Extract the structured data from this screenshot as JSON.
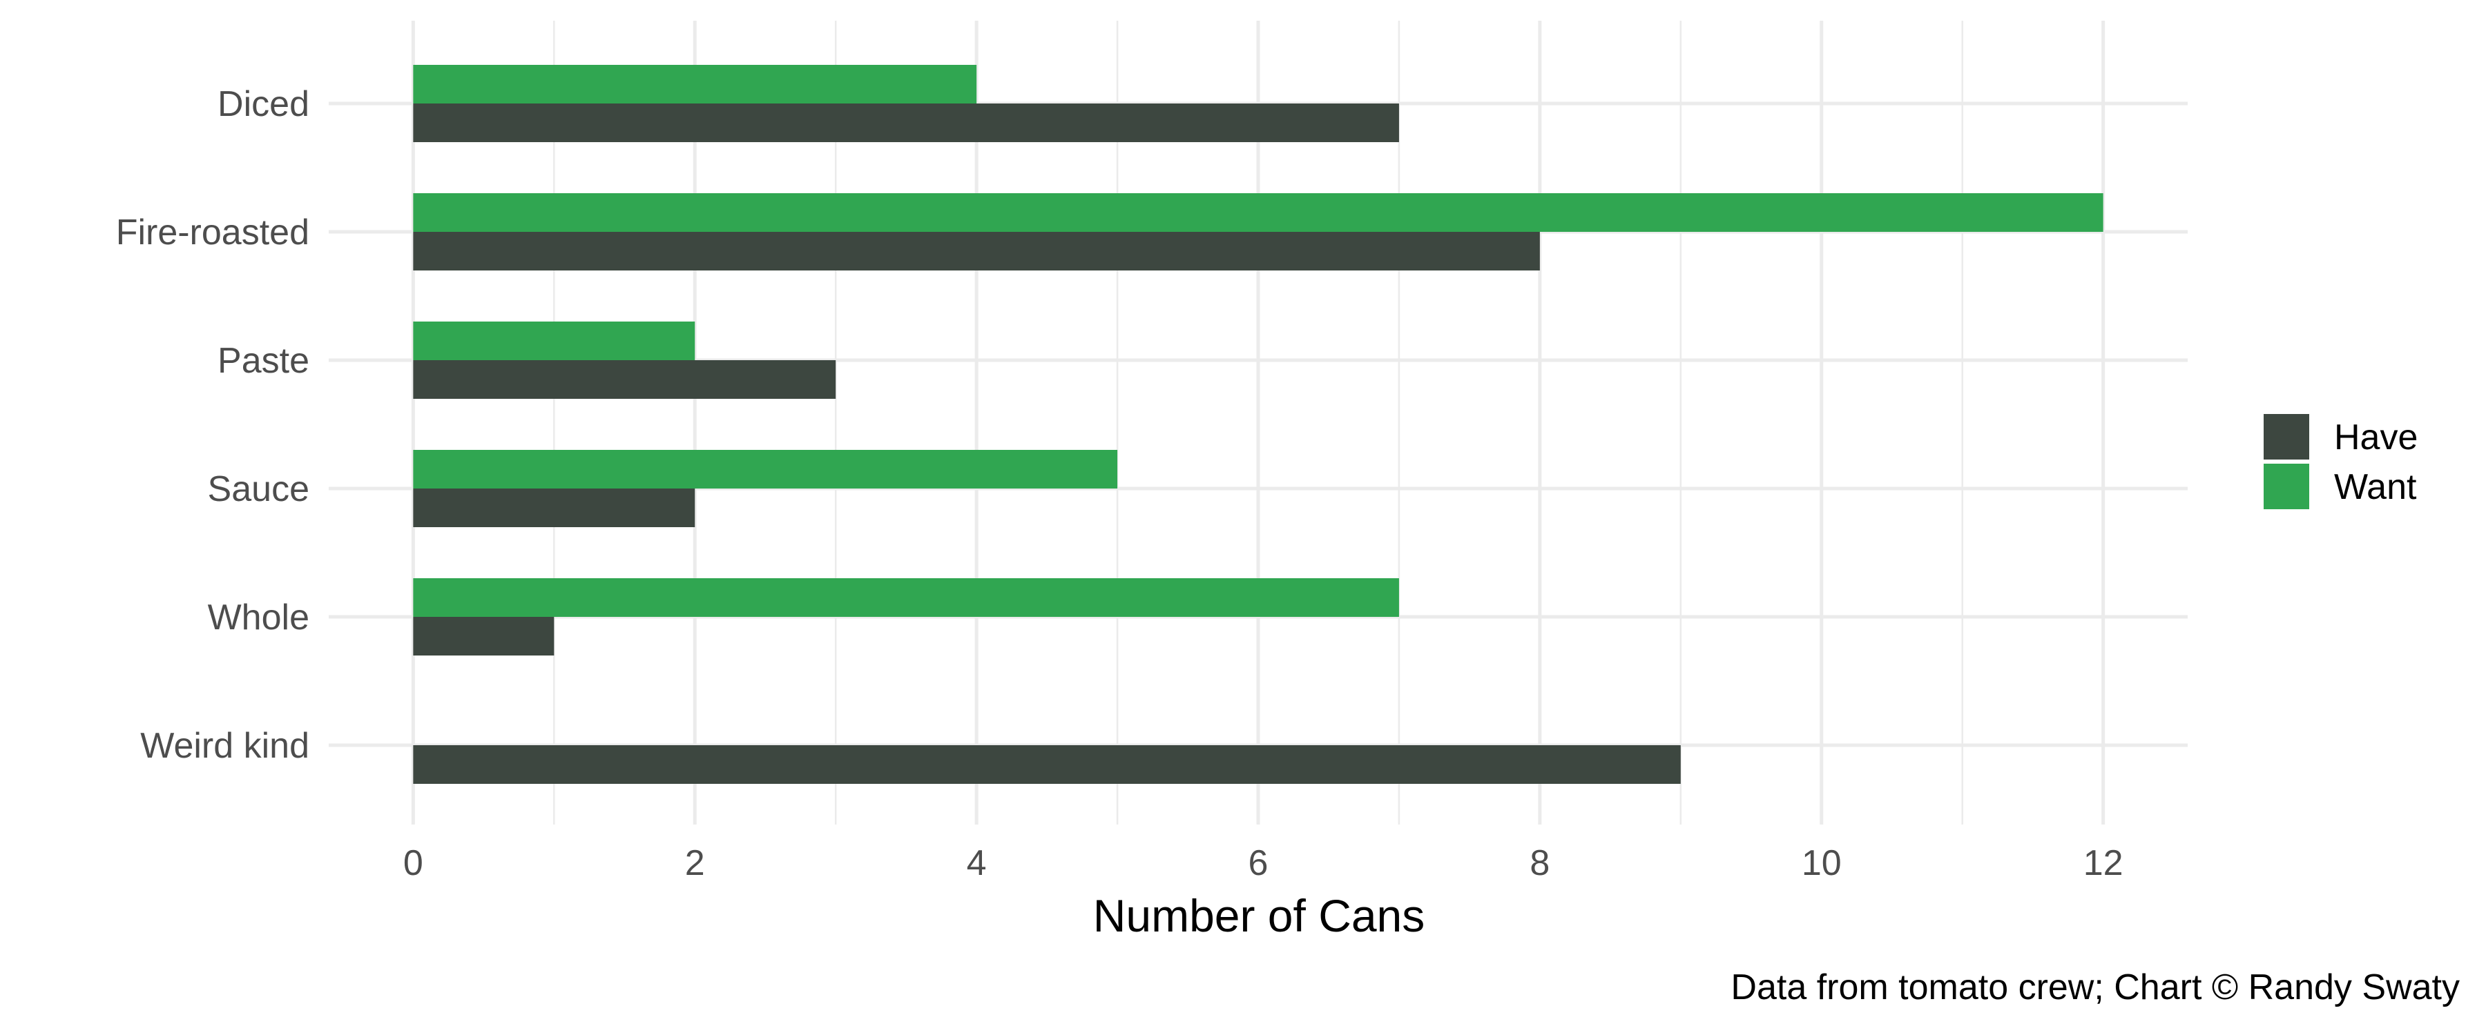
{
  "chart_data": {
    "type": "bar",
    "orientation": "horizontal",
    "categories": [
      "Diced",
      "Fire-roasted",
      "Paste",
      "Sauce",
      "Whole",
      "Weird kind"
    ],
    "series": [
      {
        "name": "Have",
        "values": [
          7,
          8,
          3,
          2,
          1,
          9
        ]
      },
      {
        "name": "Want",
        "values": [
          4,
          12,
          2,
          5,
          7,
          0
        ]
      }
    ],
    "xlabel": "Number of Cans",
    "ylabel": "",
    "xlim": [
      -0.6,
      12.6
    ],
    "xticks": [
      0,
      2,
      4,
      6,
      8,
      10,
      12
    ],
    "grid": true,
    "legend_position": "right",
    "caption": "Data from tomato crew; Chart © Randy Swaty"
  },
  "colors": {
    "Have": "#3d4740",
    "Want": "#30a651",
    "grid": "#ebebeb",
    "axis_text": "#4d4d4d"
  }
}
